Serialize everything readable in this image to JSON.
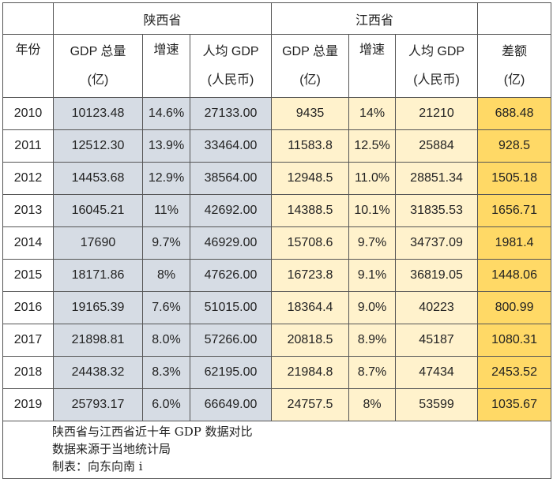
{
  "header": {
    "shaanxi": "陕西省",
    "jiangxi": "江西省",
    "year": "年份",
    "gdp_total": "GDP 总量",
    "unit_yi": "(亿)",
    "growth": "增速",
    "per_capita": "人均 GDP",
    "unit_rmb": "(人民币)",
    "diff": "差额"
  },
  "colors": {
    "shaanxi_bg": "#d6dce4",
    "jiangxi_bg": "#fff2cc",
    "diff_bg": "#ffd966"
  },
  "rows": [
    {
      "year": "2010",
      "sx_gdp": "10123.48",
      "sx_growth": "14.6%",
      "sx_pc": "27133.00",
      "jx_gdp": "9435",
      "jx_growth": "14%",
      "jx_pc": "21210",
      "diff": "688.48"
    },
    {
      "year": "2011",
      "sx_gdp": "12512.30",
      "sx_growth": "13.9%",
      "sx_pc": "33464.00",
      "jx_gdp": "11583.8",
      "jx_growth": "12.5%",
      "jx_pc": "25884",
      "diff": "928.5"
    },
    {
      "year": "2012",
      "sx_gdp": "14453.68",
      "sx_growth": "12.9%",
      "sx_pc": "38564.00",
      "jx_gdp": "12948.5",
      "jx_growth": "11.0%",
      "jx_pc": "28851.34",
      "diff": "1505.18"
    },
    {
      "year": "2013",
      "sx_gdp": "16045.21",
      "sx_growth": "11%",
      "sx_pc": "42692.00",
      "jx_gdp": "14388.5",
      "jx_growth": "10.1%",
      "jx_pc": "31835.53",
      "diff": "1656.71"
    },
    {
      "year": "2014",
      "sx_gdp": "17690",
      "sx_growth": "9.7%",
      "sx_pc": "46929.00",
      "jx_gdp": "15708.6",
      "jx_growth": "9.7%",
      "jx_pc": "34737.09",
      "diff": "1981.4"
    },
    {
      "year": "2015",
      "sx_gdp": "18171.86",
      "sx_growth": "8%",
      "sx_pc": "47626.00",
      "jx_gdp": "16723.8",
      "jx_growth": "9.1%",
      "jx_pc": "36819.05",
      "diff": "1448.06"
    },
    {
      "year": "2016",
      "sx_gdp": "19165.39",
      "sx_growth": "7.6%",
      "sx_pc": "51015.00",
      "jx_gdp": "18364.4",
      "jx_growth": "9.0%",
      "jx_pc": "40223",
      "diff": "800.99"
    },
    {
      "year": "2017",
      "sx_gdp": "21898.81",
      "sx_growth": "8.0%",
      "sx_pc": "57266.00",
      "jx_gdp": "20818.5",
      "jx_growth": "8.9%",
      "jx_pc": "45187",
      "diff": "1080.31"
    },
    {
      "year": "2018",
      "sx_gdp": "24438.32",
      "sx_growth": "8.3%",
      "sx_pc": "62195.00",
      "jx_gdp": "21984.8",
      "jx_growth": "8.7%",
      "jx_pc": "47434",
      "diff": "2453.52"
    },
    {
      "year": "2019",
      "sx_gdp": "25793.17",
      "sx_growth": "6.0%",
      "sx_pc": "66649.00",
      "jx_gdp": "24757.5",
      "jx_growth": "8%",
      "jx_pc": "53599",
      "diff": "1035.67"
    }
  ],
  "footer": {
    "line1": "陕西省与江西省近十年 GDP 数据对比",
    "line2": "数据来源于当地统计局",
    "line3": "制表：向东向南 i"
  }
}
